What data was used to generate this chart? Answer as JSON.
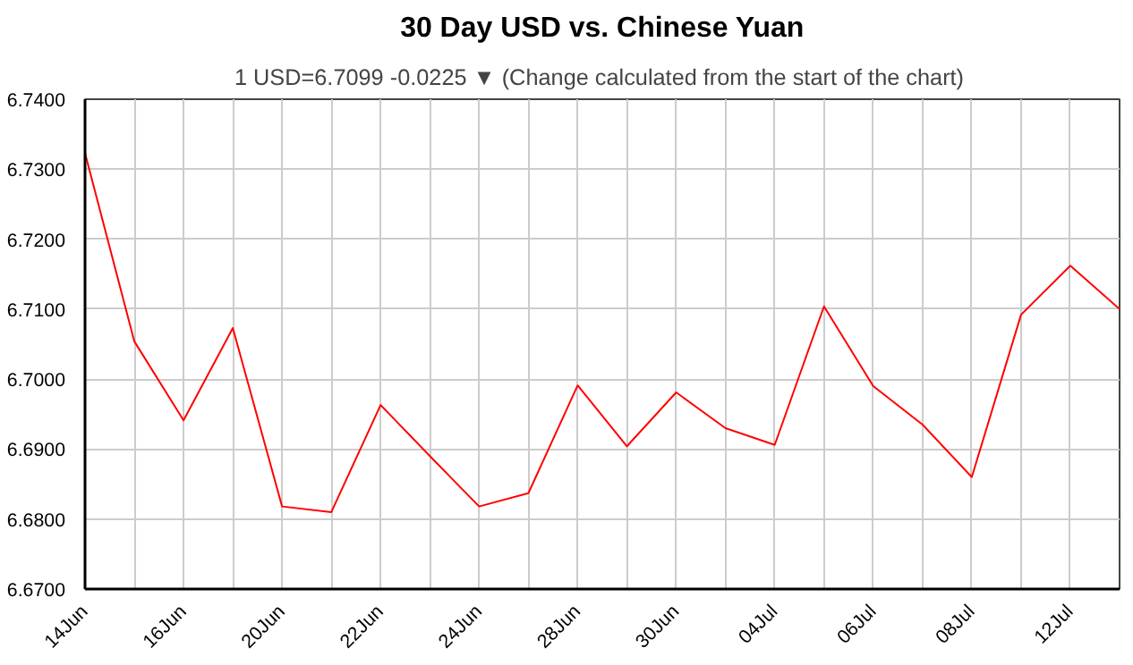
{
  "chart_data": {
    "type": "line",
    "title": "30 Day USD vs. Chinese Yuan",
    "subtitle": "1 USD=6.7099  -0.0225 ▼ (Change calculated from the start of the chart)",
    "categories": [
      "14Jun",
      null,
      "16Jun",
      null,
      "20Jun",
      null,
      "22Jun",
      null,
      "24Jun",
      null,
      "28Jun",
      null,
      "30Jun",
      null,
      "04Jul",
      null,
      "06Jul",
      null,
      "08Jul",
      null,
      "12Jul",
      null
    ],
    "series": [
      {
        "color": "#ff0000",
        "values": [
          6.7323,
          6.7054,
          6.6941,
          6.7073,
          6.6818,
          6.681,
          6.6963,
          6.689,
          6.6818,
          6.6837,
          6.6991,
          6.6904,
          6.6981,
          6.693,
          6.6906,
          6.7104,
          6.699,
          6.6935,
          6.686,
          6.7092,
          6.7162,
          6.71
        ]
      }
    ],
    "ylim": [
      6.67,
      6.74
    ],
    "yticks": [
      {
        "value": 6.67,
        "label": "6.6700"
      },
      {
        "value": 6.68,
        "label": "6.6800"
      },
      {
        "value": 6.69,
        "label": "6.6900"
      },
      {
        "value": 6.7,
        "label": "6.7000"
      },
      {
        "value": 6.71,
        "label": "6.7100"
      },
      {
        "value": 6.72,
        "label": "6.7200"
      },
      {
        "value": 6.73,
        "label": "6.7300"
      },
      {
        "value": 6.74,
        "label": "6.7400"
      }
    ],
    "grid": true,
    "marker": "none",
    "line_style": "solid"
  }
}
